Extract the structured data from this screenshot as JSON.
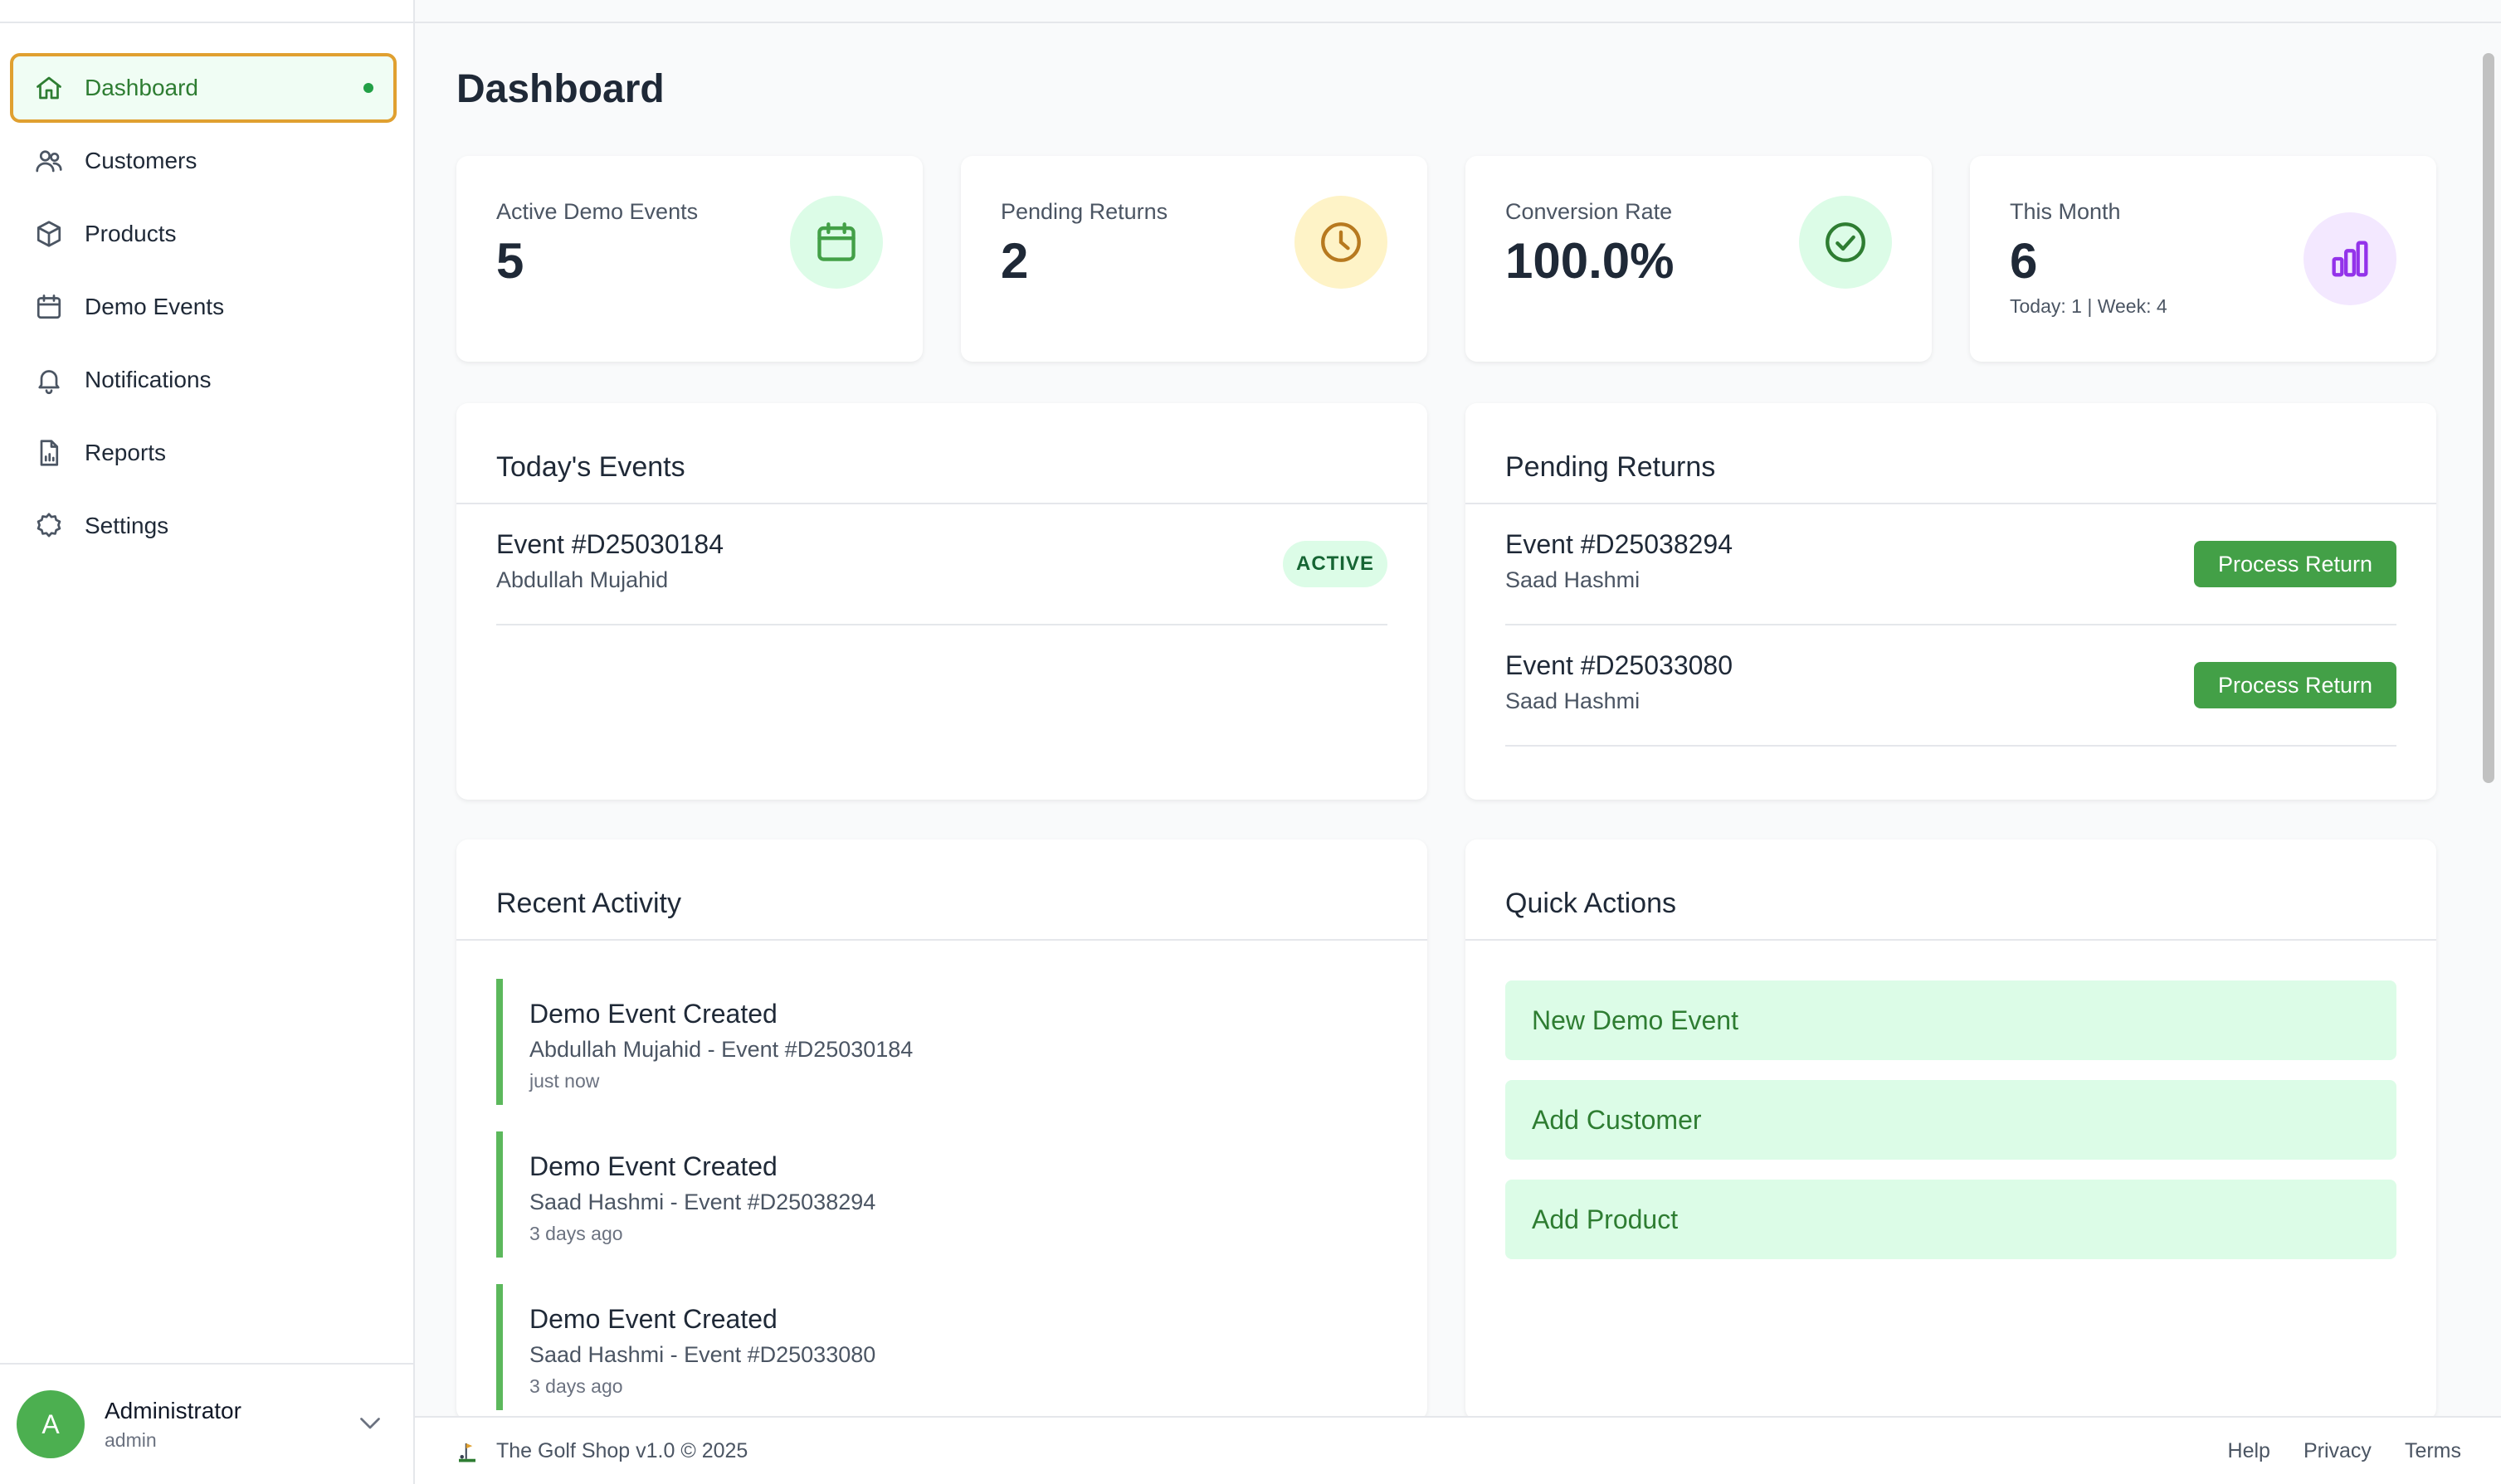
{
  "sidebar": {
    "items": [
      {
        "label": "Dashboard",
        "icon": "home-icon",
        "active": true
      },
      {
        "label": "Customers",
        "icon": "users-icon"
      },
      {
        "label": "Products",
        "icon": "cube-icon"
      },
      {
        "label": "Demo Events",
        "icon": "calendar-icon"
      },
      {
        "label": "Notifications",
        "icon": "bell-icon"
      },
      {
        "label": "Reports",
        "icon": "report-icon"
      },
      {
        "label": "Settings",
        "icon": "gear-icon"
      }
    ],
    "user": {
      "initial": "A",
      "name": "Administrator",
      "role": "admin"
    }
  },
  "page": {
    "title": "Dashboard"
  },
  "stats": [
    {
      "label": "Active Demo Events",
      "value": "5",
      "icon": "calendar-icon",
      "color": "#43a047",
      "bg": "#dcfce7"
    },
    {
      "label": "Pending Returns",
      "value": "2",
      "icon": "clock-icon",
      "color": "#b7791f",
      "bg": "#fef3c7"
    },
    {
      "label": "Conversion Rate",
      "value": "100.0%",
      "icon": "check-circle-icon",
      "color": "#2e7d32",
      "bg": "#dcfce7"
    },
    {
      "label": "This Month",
      "value": "6",
      "sub": "Today: 1 | Week: 4",
      "icon": "bar-chart-icon",
      "color": "#9333ea",
      "bg": "#f3e8ff"
    }
  ],
  "todays_events": {
    "title": "Today's Events",
    "items": [
      {
        "event": "Event #D25030184",
        "customer": "Abdullah Mujahid",
        "status": "ACTIVE"
      }
    ]
  },
  "pending_returns": {
    "title": "Pending Returns",
    "button_label": "Process Return",
    "items": [
      {
        "event": "Event #D25038294",
        "customer": "Saad Hashmi"
      },
      {
        "event": "Event #D25033080",
        "customer": "Saad Hashmi"
      }
    ]
  },
  "recent_activity": {
    "title": "Recent Activity",
    "items": [
      {
        "title": "Demo Event Created",
        "detail": "Abdullah Mujahid - Event #D25030184",
        "time": "just now"
      },
      {
        "title": "Demo Event Created",
        "detail": "Saad Hashmi - Event #D25038294",
        "time": "3 days ago"
      },
      {
        "title": "Demo Event Created",
        "detail": "Saad Hashmi - Event #D25033080",
        "time": "3 days ago"
      }
    ]
  },
  "quick_actions": {
    "title": "Quick Actions",
    "items": [
      "New Demo Event",
      "Add Customer",
      "Add Product"
    ]
  },
  "footer": {
    "text": "The Golf Shop v1.0 © 2025",
    "links": [
      "Help",
      "Privacy",
      "Terms"
    ]
  },
  "colors": {
    "accent": "#43a047",
    "active_border": "#e0a030"
  }
}
